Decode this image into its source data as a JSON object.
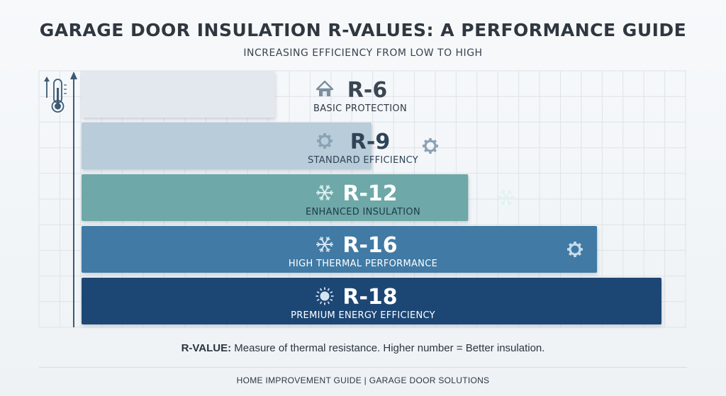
{
  "title": "GARAGE DOOR INSULATION R-VALUES: A PERFORMANCE GUIDE",
  "subtitle": "INCREASING EFFICIENCY FROM LOW TO HIGH",
  "note": {
    "label": "R-VALUE:",
    "text": " Measure of thermal resistance. Higher number = Better insulation."
  },
  "footer": "HOME IMPROVEMENT GUIDE | GARAGE DOOR SOLUTIONS",
  "icons": {
    "axis": "thermometer-icon",
    "r6": "house-icon",
    "r9": "gear-icon",
    "r12": "snowflake-icon",
    "r16": "snowflake-icon",
    "r18": "sun-icon"
  },
  "colors": {
    "r6": "#e3e8ee",
    "r9": "#b8ccd9",
    "r12": "#6ea8a8",
    "r16": "#3f7aa5",
    "r18": "#1d4775"
  },
  "chart_data": {
    "type": "bar",
    "orientation": "horizontal",
    "categories": [
      "R-6",
      "R-9",
      "R-12",
      "R-16",
      "R-18"
    ],
    "values": [
      6,
      9,
      12,
      16,
      18
    ],
    "descriptions": [
      "BASIC PROTECTION",
      "STANDARD EFFICIENCY",
      "ENHANCED INSULATION",
      "HIGH THERMAL PERFORMANCE",
      "PREMIUM ENERGY EFFICIENCY"
    ],
    "title": "GARAGE DOOR INSULATION R-VALUES: A PERFORMANCE GUIDE",
    "subtitle": "INCREASING EFFICIENCY FROM LOW TO HIGH",
    "xlabel": "",
    "ylabel": "",
    "grid": true
  }
}
